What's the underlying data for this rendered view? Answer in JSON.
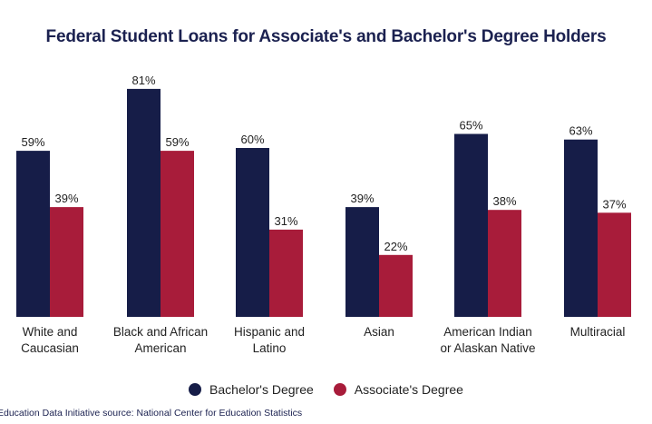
{
  "chart_data": {
    "type": "bar",
    "title": "Federal Student Loans for Associate's and Bachelor's Degree Holders",
    "categories": [
      [
        "White and",
        "Caucasian"
      ],
      [
        "Black and African",
        "American"
      ],
      [
        "Hispanic and",
        "Latino"
      ],
      [
        "Asian"
      ],
      [
        "American Indian",
        "or Alaskan Native"
      ],
      [
        "Multiracial"
      ]
    ],
    "series": [
      {
        "name": "Bachelor's Degree",
        "color": "#161d48",
        "values": [
          59,
          81,
          60,
          39,
          65,
          63
        ],
        "labels": [
          "59%",
          "81%",
          "60%",
          "39%",
          "65%",
          "63%"
        ]
      },
      {
        "name": "Associate's Degree",
        "color": "#a81c3a",
        "values": [
          39,
          59,
          31,
          22,
          38,
          37
        ],
        "labels": [
          "39%",
          "59%",
          "31%",
          "22%",
          "38%",
          "37%"
        ]
      }
    ],
    "ylim": [
      0,
      100
    ],
    "grid": false,
    "legend_position": "bottom"
  },
  "source": "Education Data Initiative source: National Center for Education Statistics"
}
